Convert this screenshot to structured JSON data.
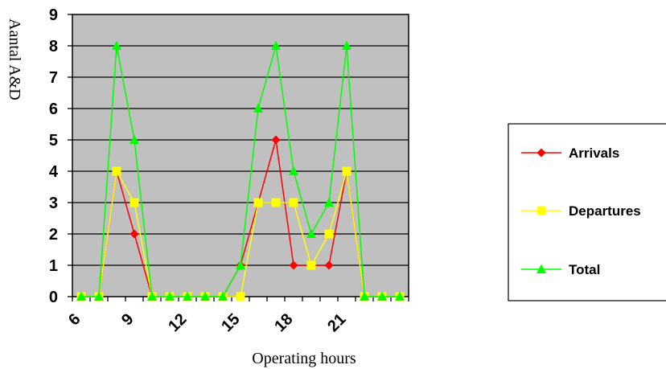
{
  "chart_data": {
    "type": "line",
    "title": "",
    "xlabel": "Operating hours",
    "ylabel": "Aantal A&D",
    "x": [
      6,
      7,
      8,
      9,
      10,
      11,
      12,
      13,
      14,
      15,
      16,
      17,
      18,
      19,
      20,
      21,
      22,
      23,
      24
    ],
    "xticks": [
      "6",
      "9",
      "12",
      "15",
      "18",
      "21"
    ],
    "yticks": [
      "0",
      "1",
      "2",
      "3",
      "4",
      "5",
      "6",
      "7",
      "8",
      "9"
    ],
    "xlim": [
      5.5,
      24.5
    ],
    "ylim": [
      0,
      9
    ],
    "grid": "horizontal",
    "plot_background": "#c0c0c0",
    "legend_position": "right",
    "series": [
      {
        "name": "Arrivals",
        "color": "#ff0000",
        "marker": "diamond",
        "values": [
          0,
          0,
          4,
          2,
          0,
          0,
          0,
          0,
          0,
          1,
          3,
          5,
          1,
          1,
          1,
          4,
          0,
          0,
          0
        ]
      },
      {
        "name": "Departures",
        "color": "#ffff00",
        "marker": "square",
        "values": [
          0,
          0,
          4,
          3,
          0,
          0,
          0,
          0,
          0,
          0,
          3,
          3,
          3,
          1,
          2,
          4,
          0,
          0,
          0
        ]
      },
      {
        "name": "Total",
        "color": "#00ff00",
        "marker": "triangle",
        "values": [
          0,
          0,
          8,
          5,
          0,
          0,
          0,
          0,
          0,
          1,
          6,
          8,
          4,
          2,
          3,
          8,
          0,
          0,
          0
        ]
      }
    ]
  }
}
